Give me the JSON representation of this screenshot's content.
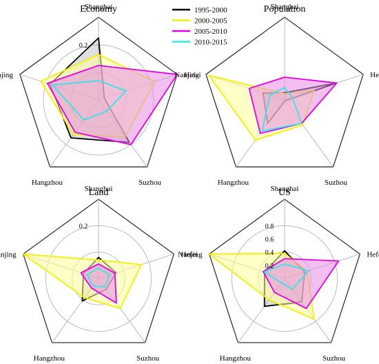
{
  "legend": {
    "entries": [
      {
        "name": "1995-2000",
        "color": "#000000"
      },
      {
        "name": "2000-2005",
        "color": "#f2f200"
      },
      {
        "name": "2005-2010",
        "color": "#e600e6"
      },
      {
        "name": "2010-2015",
        "color": "#33e6e6"
      }
    ]
  },
  "chart_data": [
    {
      "type": "radar",
      "title": "Economy",
      "axes": [
        "Shanghai",
        "Hefei",
        "Suzhou",
        "Hangzhou",
        "Nanjing"
      ],
      "rmax": 0.3,
      "rings": [
        0.1,
        0.2
      ],
      "tick_labels": [
        {
          "value": 0.2,
          "text": "0.2"
        }
      ],
      "series": [
        {
          "name": "1995-2000",
          "color": "#000000",
          "fill": "none",
          "values": [
            0.225,
            0.022,
            0.19,
            0.17,
            0.185
          ]
        },
        {
          "name": "2000-2005",
          "color": "#f2f200",
          "fill": "#ffff99",
          "values": [
            0.165,
            0.215,
            0.165,
            0.155,
            0.22
          ]
        },
        {
          "name": "2005-2010",
          "color": "#e600e6",
          "fill": "#e68ce6",
          "values": [
            0.125,
            0.3,
            0.2,
            0.145,
            0.195
          ]
        },
        {
          "name": "2010-2015",
          "color": "#33e6e6",
          "fill": "none",
          "values": [
            0.07,
            0.105,
            0.05,
            0.09,
            0.175
          ]
        }
      ]
    },
    {
      "type": "radar",
      "title": "Population",
      "axes": [
        "Shanghai",
        "Hefei",
        "Suzhou",
        "Hangzhou",
        "Nanjing"
      ],
      "rmax": 0.4,
      "rings": [],
      "tick_labels": [],
      "series": [
        {
          "name": "1995-2000",
          "color": "#000000",
          "fill": "none",
          "values": [
            0.035,
            0.265,
            0.005,
            0.14,
            0.11
          ]
        },
        {
          "name": "2000-2005",
          "color": "#f2f200",
          "fill": "#ffff99",
          "values": [
            0.03,
            0.15,
            0.15,
            0.24,
            0.385
          ]
        },
        {
          "name": "2005-2010",
          "color": "#e600e6",
          "fill": "#e68ce6",
          "values": [
            0.11,
            0.265,
            0.14,
            0.2,
            0.18
          ]
        },
        {
          "name": "2010-2015",
          "color": "#33e6e6",
          "fill": "none",
          "values": [
            0.06,
            0.04,
            0.14,
            0.185,
            0.075
          ]
        }
      ]
    },
    {
      "type": "radar",
      "title": "Land",
      "axes": [
        "Shanghai",
        "Hefei",
        "Suzhou",
        "Hangzhou",
        "Nanjing"
      ],
      "rmax": 0.3,
      "rings": [
        0.1,
        0.2
      ],
      "tick_labels": [
        {
          "value": 0.2,
          "text": "0.2"
        }
      ],
      "series": [
        {
          "name": "1995-2000",
          "color": "#000000",
          "fill": "none",
          "values": [
            0.08,
            0.07,
            0.05,
            0.105,
            0.06
          ]
        },
        {
          "name": "2000-2005",
          "color": "#f2f200",
          "fill": "#ffff99",
          "values": [
            0.07,
            0.17,
            0.14,
            0.09,
            0.3
          ]
        },
        {
          "name": "2005-2010",
          "color": "#e600e6",
          "fill": "#e68ce6",
          "values": [
            0.055,
            0.065,
            0.115,
            0.045,
            0.07
          ]
        },
        {
          "name": "2010-2015",
          "color": "#33e6e6",
          "fill": "none",
          "values": [
            0.04,
            0.045,
            0.04,
            0.035,
            0.045
          ]
        }
      ]
    },
    {
      "type": "radar",
      "title": "US",
      "axes": [
        "Shanghai",
        "Hefei",
        "Suzhou",
        "Hangzhou",
        "Nanjing"
      ],
      "rmax": 1.2,
      "rings": [
        0.4,
        0.8
      ],
      "tick_labels": [
        {
          "value": 0.2,
          "text": "0.2"
        },
        {
          "value": 0.4,
          "text": "0.4"
        },
        {
          "value": 0.6,
          "text": "0.6"
        },
        {
          "value": 0.8,
          "text": "0.8"
        }
      ],
      "series": [
        {
          "name": "1995-2000",
          "color": "#000000",
          "fill": "none",
          "values": [
            0.42,
            0.32,
            0.44,
            0.52,
            0.32
          ]
        },
        {
          "name": "2000-2005",
          "color": "#f2f200",
          "fill": "#ffff99",
          "values": [
            0.38,
            0.36,
            0.76,
            0.4,
            1.2
          ]
        },
        {
          "name": "2005-2010",
          "color": "#e600e6",
          "fill": "#e68ce6",
          "values": [
            0.3,
            0.86,
            0.56,
            0.26,
            0.34
          ]
        },
        {
          "name": "2010-2015",
          "color": "#33e6e6",
          "fill": "none",
          "values": [
            0.22,
            0.38,
            0.2,
            0.08,
            0.32
          ]
        }
      ]
    }
  ]
}
